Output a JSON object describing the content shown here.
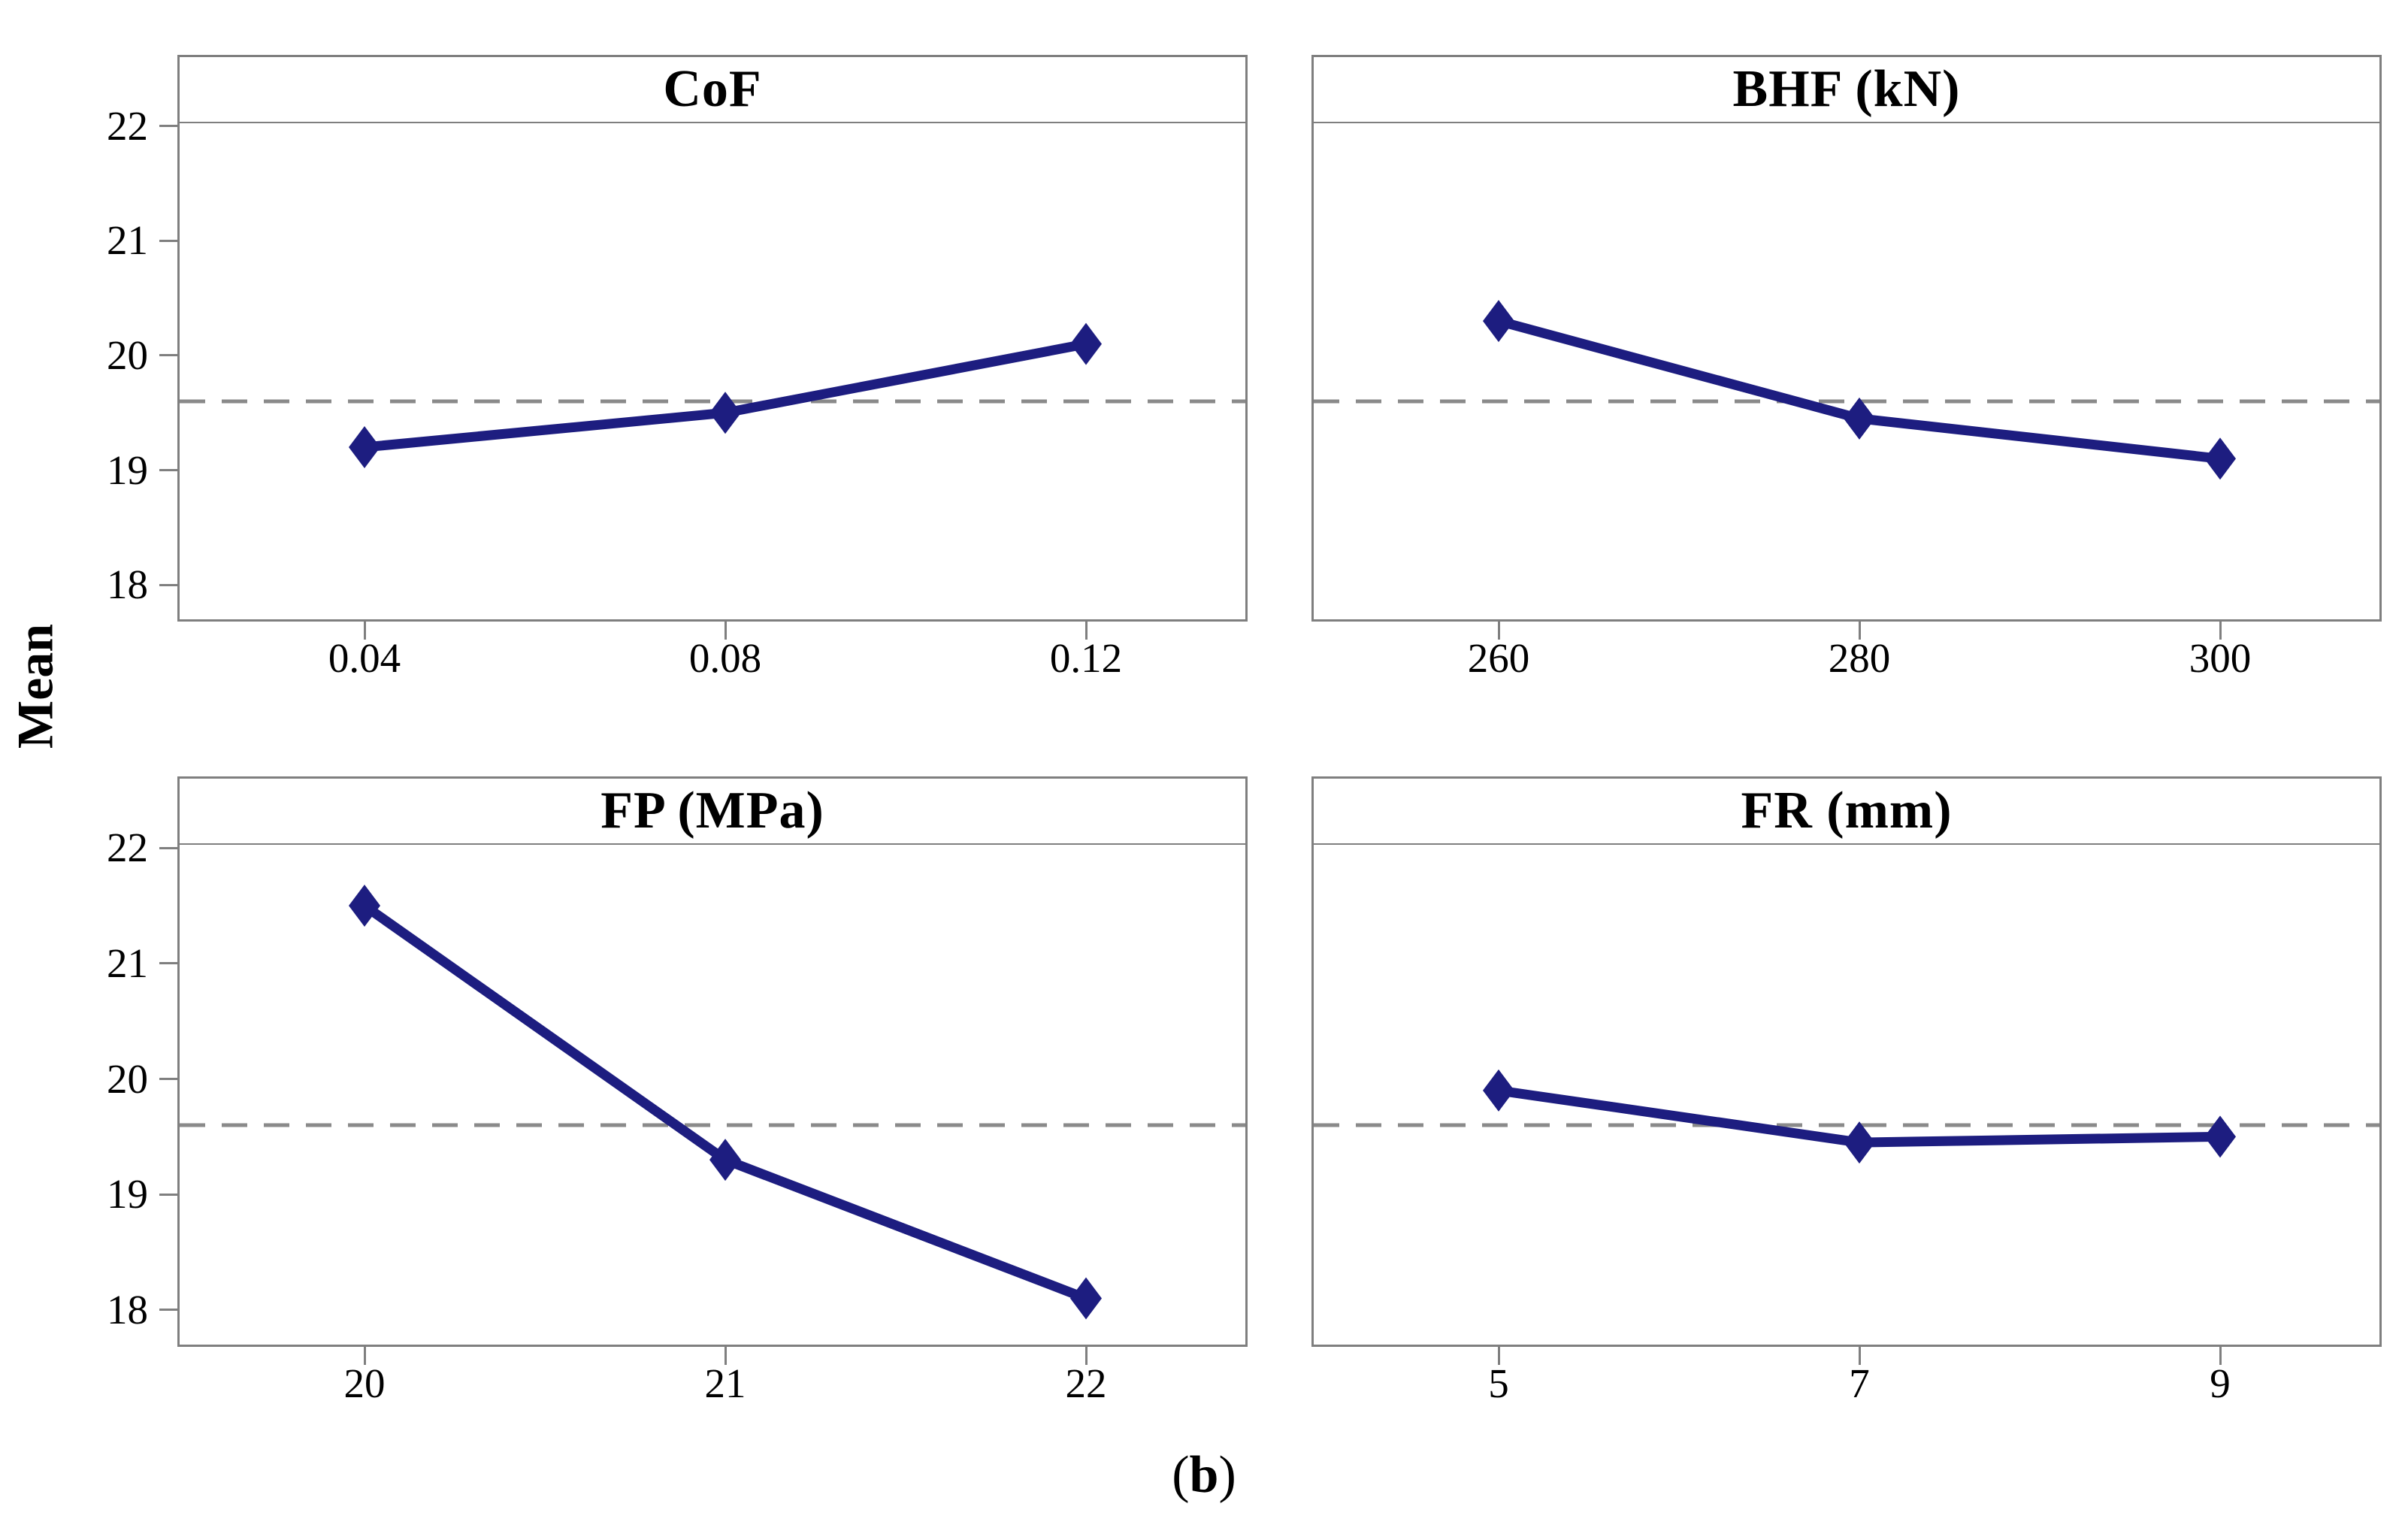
{
  "chart_data": {
    "type": "line",
    "ylabel": "Mean",
    "caption": "(b)",
    "caption_parts": {
      "open": "(",
      "letter": "b",
      "close": ")"
    },
    "y_ticks": [
      18,
      19,
      20,
      21,
      22
    ],
    "ylim": [
      17.7,
      22.6
    ],
    "reference_line": 19.6,
    "reference_line_style": "dashed",
    "marker": "diamond",
    "grid": "off",
    "legend": "none",
    "colors": {
      "line": "#1d1d80",
      "reference": "#8a8a8a",
      "frame": "#7f7f7f",
      "text": "#000000",
      "background": "#ffffff"
    },
    "panels": [
      {
        "title": "CoF",
        "categories": [
          "0.04",
          "0.08",
          "0.12"
        ],
        "values": [
          19.2,
          19.5,
          20.1
        ]
      },
      {
        "title": "BHF (kN)",
        "categories": [
          "260",
          "280",
          "300"
        ],
        "values": [
          20.3,
          19.45,
          19.1
        ]
      },
      {
        "title": "FP (MPa)",
        "categories": [
          "20",
          "21",
          "22"
        ],
        "values": [
          21.5,
          19.3,
          18.1
        ]
      },
      {
        "title": "FR (mm)",
        "categories": [
          "5",
          "7",
          "9"
        ],
        "values": [
          19.9,
          19.45,
          19.5
        ]
      }
    ]
  }
}
